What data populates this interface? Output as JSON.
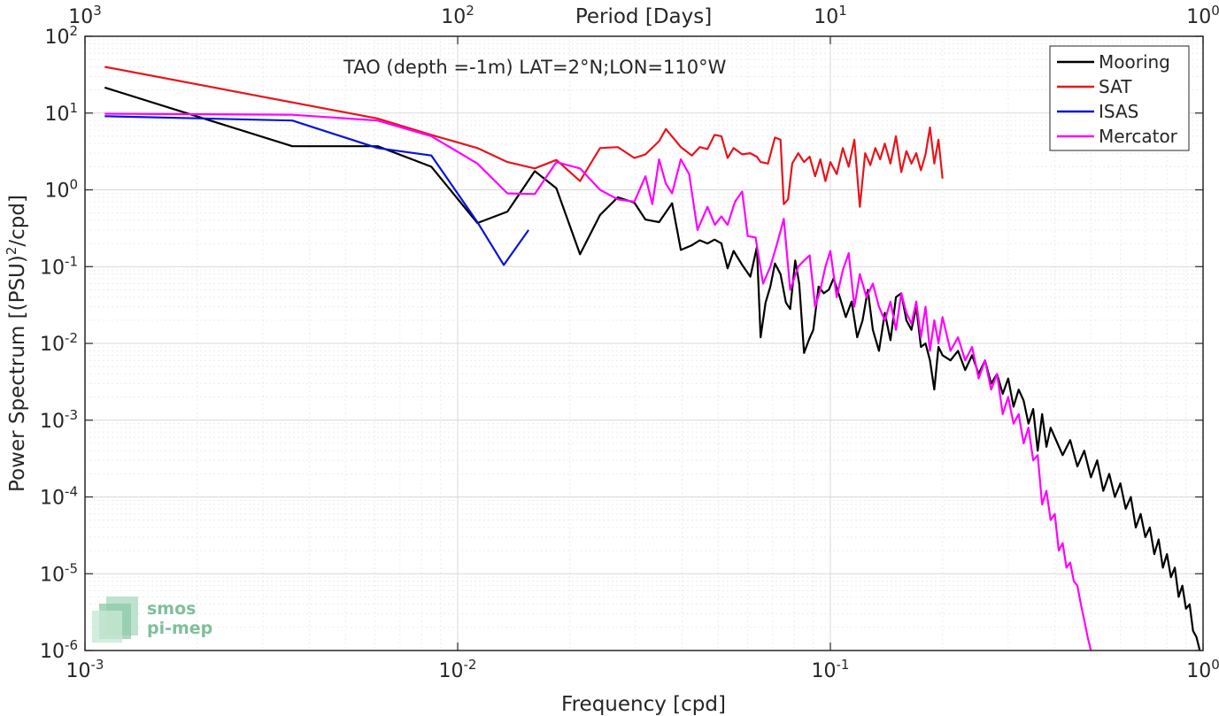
{
  "chart_data": {
    "type": "line",
    "title": "",
    "annotation": "TAO (depth =-1m) LAT=2°N;LON=110°W",
    "xlabel": "Frequency [cpd]",
    "ylabel": "Power Spectrum [(PSU)",
    "ylabel_sup": "2",
    "ylabel_suffix": "/cpd]",
    "top_xlabel": "Period [Days]",
    "xscale": "log",
    "yscale": "log",
    "xlim": [
      0.001,
      1
    ],
    "ylim": [
      1e-06,
      100
    ],
    "grid": true,
    "legend_position": "top-right",
    "x_ticks": [
      {
        "value": 0.001,
        "base": "10",
        "exp": "-3"
      },
      {
        "value": 0.01,
        "base": "10",
        "exp": "-2"
      },
      {
        "value": 0.1,
        "base": "10",
        "exp": "-1"
      },
      {
        "value": 1,
        "base": "10",
        "exp": "0"
      }
    ],
    "top_ticks": [
      {
        "period": 1000,
        "base": "10",
        "exp": "3"
      },
      {
        "period": 100,
        "base": "10",
        "exp": "2"
      },
      {
        "period": 10,
        "base": "10",
        "exp": "1"
      },
      {
        "period": 1,
        "base": "10",
        "exp": "0"
      }
    ],
    "y_ticks": [
      {
        "value": 100,
        "base": "10",
        "exp": "2"
      },
      {
        "value": 10,
        "base": "10",
        "exp": "1"
      },
      {
        "value": 1,
        "base": "10",
        "exp": "0"
      },
      {
        "value": 0.1,
        "base": "10",
        "exp": "-1"
      },
      {
        "value": 0.01,
        "base": "10",
        "exp": "-2"
      },
      {
        "value": 0.001,
        "base": "10",
        "exp": "-3"
      },
      {
        "value": 0.0001,
        "base": "10",
        "exp": "-4"
      },
      {
        "value": 1e-05,
        "base": "10",
        "exp": "-5"
      },
      {
        "value": 1e-06,
        "base": "10",
        "exp": "-6"
      }
    ],
    "series": [
      {
        "name": "Mooring",
        "color": "#000000",
        "points": [
          [
            0.00113,
            21.5
          ],
          [
            0.0036,
            3.7
          ],
          [
            0.0061,
            3.7
          ],
          [
            0.0085,
            2.0
          ],
          [
            0.0113,
            0.37
          ],
          [
            0.0136,
            0.52
          ],
          [
            0.0161,
            1.75
          ],
          [
            0.0184,
            1.05
          ],
          [
            0.0213,
            0.145
          ],
          [
            0.0241,
            0.47
          ],
          [
            0.0269,
            0.8
          ],
          [
            0.0298,
            0.68
          ],
          [
            0.0319,
            0.41
          ],
          [
            0.0347,
            0.38
          ],
          [
            0.0376,
            0.67
          ],
          [
            0.0397,
            0.165
          ],
          [
            0.0425,
            0.19
          ],
          [
            0.0446,
            0.22
          ],
          [
            0.0468,
            0.2
          ],
          [
            0.0489,
            0.225
          ],
          [
            0.051,
            0.2
          ],
          [
            0.053,
            0.095
          ],
          [
            0.055,
            0.16
          ],
          [
            0.058,
            0.105
          ],
          [
            0.061,
            0.074
          ],
          [
            0.0635,
            0.18
          ],
          [
            0.065,
            0.012
          ],
          [
            0.067,
            0.034
          ],
          [
            0.069,
            0.055
          ],
          [
            0.071,
            0.11
          ],
          [
            0.0735,
            0.08
          ],
          [
            0.076,
            0.034
          ],
          [
            0.078,
            0.028
          ],
          [
            0.0805,
            0.12
          ],
          [
            0.0825,
            0.06
          ],
          [
            0.085,
            0.0075
          ],
          [
            0.0875,
            0.011
          ],
          [
            0.09,
            0.015
          ],
          [
            0.093,
            0.055
          ],
          [
            0.096,
            0.045
          ],
          [
            0.099,
            0.05
          ],
          [
            0.102,
            0.07
          ],
          [
            0.106,
            0.04
          ],
          [
            0.11,
            0.022
          ],
          [
            0.114,
            0.035
          ],
          [
            0.118,
            0.012
          ],
          [
            0.122,
            0.02
          ],
          [
            0.126,
            0.05
          ],
          [
            0.13,
            0.015
          ],
          [
            0.135,
            0.008
          ],
          [
            0.14,
            0.025
          ],
          [
            0.145,
            0.011
          ],
          [
            0.15,
            0.04
          ],
          [
            0.155,
            0.045
          ],
          [
            0.16,
            0.02
          ],
          [
            0.165,
            0.015
          ],
          [
            0.17,
            0.03
          ],
          [
            0.175,
            0.009
          ],
          [
            0.18,
            0.01
          ],
          [
            0.185,
            0.006
          ],
          [
            0.19,
            0.0025
          ],
          [
            0.195,
            0.009
          ],
          [
            0.2,
            0.007
          ],
          [
            0.21,
            0.006
          ],
          [
            0.22,
            0.008
          ],
          [
            0.23,
            0.0045
          ],
          [
            0.24,
            0.007
          ],
          [
            0.25,
            0.004
          ],
          [
            0.26,
            0.006
          ],
          [
            0.27,
            0.003
          ],
          [
            0.28,
            0.004
          ],
          [
            0.29,
            0.0022
          ],
          [
            0.3,
            0.0035
          ],
          [
            0.31,
            0.0015
          ],
          [
            0.32,
            0.0025
          ],
          [
            0.33,
            0.0018
          ],
          [
            0.34,
            0.0009
          ],
          [
            0.35,
            0.0014
          ],
          [
            0.36,
            0.0004
          ],
          [
            0.37,
            0.0012
          ],
          [
            0.38,
            0.00045
          ],
          [
            0.39,
            0.0008
          ],
          [
            0.4,
            0.0006
          ],
          [
            0.42,
            0.00035
          ],
          [
            0.44,
            0.00055
          ],
          [
            0.46,
            0.00025
          ],
          [
            0.48,
            0.0004
          ],
          [
            0.5,
            0.00018
          ],
          [
            0.52,
            0.0003
          ],
          [
            0.54,
            0.00012
          ],
          [
            0.56,
            0.0002
          ],
          [
            0.58,
            0.0001
          ],
          [
            0.6,
            0.00015
          ],
          [
            0.62,
            7e-05
          ],
          [
            0.64,
            0.0001
          ],
          [
            0.66,
            4e-05
          ],
          [
            0.68,
            6e-05
          ],
          [
            0.7,
            3e-05
          ],
          [
            0.72,
            4e-05
          ],
          [
            0.74,
            1.8e-05
          ],
          [
            0.76,
            2.8e-05
          ],
          [
            0.78,
            1.2e-05
          ],
          [
            0.8,
            1.8e-05
          ],
          [
            0.82,
            9e-06
          ],
          [
            0.84,
            1.2e-05
          ],
          [
            0.86,
            5e-06
          ],
          [
            0.88,
            7e-06
          ],
          [
            0.9,
            3.5e-06
          ],
          [
            0.92,
            4e-06
          ],
          [
            0.94,
            1.8e-06
          ],
          [
            0.96,
            1.5e-06
          ],
          [
            0.98,
            1e-06
          ]
        ]
      },
      {
        "name": "SAT",
        "color": "#e8141c",
        "points": [
          [
            0.00113,
            40
          ],
          [
            0.0061,
            8.5
          ],
          [
            0.0085,
            5.2
          ],
          [
            0.0113,
            3.5
          ],
          [
            0.0136,
            2.3
          ],
          [
            0.0161,
            1.9
          ],
          [
            0.0184,
            2.45
          ],
          [
            0.0213,
            1.3
          ],
          [
            0.0241,
            3.5
          ],
          [
            0.0269,
            3.6
          ],
          [
            0.0298,
            2.6
          ],
          [
            0.0319,
            2.9
          ],
          [
            0.0347,
            4.3
          ],
          [
            0.0362,
            6.2
          ],
          [
            0.0397,
            3.6
          ],
          [
            0.0425,
            2.8
          ],
          [
            0.0446,
            3.6
          ],
          [
            0.0468,
            3.4
          ],
          [
            0.0489,
            5.2
          ],
          [
            0.051,
            5.0
          ],
          [
            0.053,
            2.6
          ],
          [
            0.055,
            3.5
          ],
          [
            0.058,
            2.9
          ],
          [
            0.061,
            3.0
          ],
          [
            0.0635,
            2.7
          ],
          [
            0.065,
            2.3
          ],
          [
            0.068,
            2.2
          ],
          [
            0.071,
            4.8
          ],
          [
            0.0735,
            4.5
          ],
          [
            0.075,
            0.65
          ],
          [
            0.077,
            0.75
          ],
          [
            0.079,
            2.2
          ],
          [
            0.082,
            3.0
          ],
          [
            0.085,
            2.3
          ],
          [
            0.088,
            2.7
          ],
          [
            0.091,
            1.5
          ],
          [
            0.094,
            2.5
          ],
          [
            0.097,
            1.3
          ],
          [
            0.1,
            2.3
          ],
          [
            0.104,
            1.6
          ],
          [
            0.108,
            3.5
          ],
          [
            0.112,
            2.0
          ],
          [
            0.116,
            4.5
          ],
          [
            0.12,
            0.6
          ],
          [
            0.124,
            3.0
          ],
          [
            0.128,
            2.1
          ],
          [
            0.132,
            3.5
          ],
          [
            0.136,
            2.5
          ],
          [
            0.14,
            4.0
          ],
          [
            0.145,
            2.2
          ],
          [
            0.15,
            5.0
          ],
          [
            0.155,
            1.7
          ],
          [
            0.16,
            3.2
          ],
          [
            0.165,
            2.2
          ],
          [
            0.17,
            3.0
          ],
          [
            0.175,
            1.8
          ],
          [
            0.18,
            2.9
          ],
          [
            0.185,
            6.5
          ],
          [
            0.19,
            2.2
          ],
          [
            0.195,
            4.5
          ],
          [
            0.2,
            1.4
          ]
        ]
      },
      {
        "name": "ISAS",
        "color": "#0a14d8",
        "points": [
          [
            0.00113,
            9.1
          ],
          [
            0.0036,
            8.0
          ],
          [
            0.0061,
            3.5
          ],
          [
            0.0085,
            2.8
          ],
          [
            0.0113,
            0.38
          ],
          [
            0.0133,
            0.105
          ],
          [
            0.0155,
            0.3
          ]
        ]
      },
      {
        "name": "Mercator",
        "color": "#ff00ff",
        "points": [
          [
            0.00113,
            9.8
          ],
          [
            0.0036,
            9.5
          ],
          [
            0.0061,
            8.0
          ],
          [
            0.0085,
            5.0
          ],
          [
            0.0113,
            2.2
          ],
          [
            0.0136,
            0.9
          ],
          [
            0.0161,
            0.88
          ],
          [
            0.0184,
            2.3
          ],
          [
            0.0213,
            1.9
          ],
          [
            0.0241,
            1.0
          ],
          [
            0.0269,
            0.75
          ],
          [
            0.0298,
            0.7
          ],
          [
            0.0319,
            1.5
          ],
          [
            0.0333,
            0.65
          ],
          [
            0.0347,
            2.5
          ],
          [
            0.0362,
            1.2
          ],
          [
            0.0376,
            0.9
          ],
          [
            0.0397,
            2.5
          ],
          [
            0.0418,
            1.6
          ],
          [
            0.044,
            0.3
          ],
          [
            0.0468,
            0.6
          ],
          [
            0.049,
            0.35
          ],
          [
            0.051,
            0.45
          ],
          [
            0.053,
            0.35
          ],
          [
            0.0555,
            0.7
          ],
          [
            0.058,
            0.95
          ],
          [
            0.06,
            0.25
          ],
          [
            0.063,
            0.24
          ],
          [
            0.066,
            0.06
          ],
          [
            0.069,
            0.1
          ],
          [
            0.072,
            0.2
          ],
          [
            0.075,
            0.42
          ],
          [
            0.078,
            0.05
          ],
          [
            0.082,
            0.1
          ],
          [
            0.085,
            0.12
          ],
          [
            0.088,
            0.14
          ],
          [
            0.091,
            0.03
          ],
          [
            0.094,
            0.05
          ],
          [
            0.097,
            0.1
          ],
          [
            0.1,
            0.16
          ],
          [
            0.104,
            0.04
          ],
          [
            0.108,
            0.09
          ],
          [
            0.112,
            0.15
          ],
          [
            0.116,
            0.03
          ],
          [
            0.12,
            0.08
          ],
          [
            0.125,
            0.04
          ],
          [
            0.13,
            0.06
          ],
          [
            0.135,
            0.03
          ],
          [
            0.14,
            0.02
          ],
          [
            0.145,
            0.035
          ],
          [
            0.15,
            0.015
          ],
          [
            0.155,
            0.045
          ],
          [
            0.16,
            0.025
          ],
          [
            0.165,
            0.018
          ],
          [
            0.17,
            0.035
          ],
          [
            0.175,
            0.012
          ],
          [
            0.18,
            0.03
          ],
          [
            0.185,
            0.008
          ],
          [
            0.19,
            0.02
          ],
          [
            0.195,
            0.01
          ],
          [
            0.2,
            0.022
          ],
          [
            0.21,
            0.008
          ],
          [
            0.22,
            0.012
          ],
          [
            0.23,
            0.006
          ],
          [
            0.24,
            0.009
          ],
          [
            0.25,
            0.0035
          ],
          [
            0.26,
            0.006
          ],
          [
            0.27,
            0.0025
          ],
          [
            0.28,
            0.004
          ],
          [
            0.29,
            0.0012
          ],
          [
            0.3,
            0.002
          ],
          [
            0.31,
            0.0009
          ],
          [
            0.32,
            0.0012
          ],
          [
            0.33,
            0.0005
          ],
          [
            0.34,
            0.0008
          ],
          [
            0.35,
            0.0003
          ],
          [
            0.36,
            0.00035
          ],
          [
            0.37,
            8e-05
          ],
          [
            0.38,
            0.00012
          ],
          [
            0.39,
            5e-05
          ],
          [
            0.4,
            6e-05
          ],
          [
            0.41,
            2e-05
          ],
          [
            0.42,
            2.5e-05
          ],
          [
            0.43,
            1.2e-05
          ],
          [
            0.44,
            1.4e-05
          ],
          [
            0.45,
            8e-06
          ],
          [
            0.46,
            7e-06
          ],
          [
            0.47,
            4e-06
          ],
          [
            0.48,
            2.5e-06
          ],
          [
            0.49,
            1.5e-06
          ],
          [
            0.5,
            1e-06
          ]
        ]
      }
    ]
  },
  "watermark": {
    "line1": "smos",
    "line2": "pi-mep"
  }
}
